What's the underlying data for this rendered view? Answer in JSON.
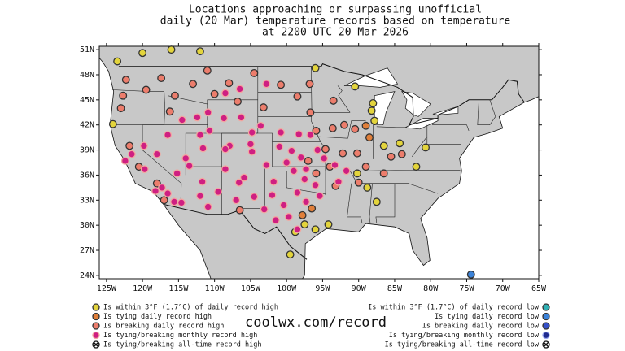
{
  "title": [
    "Locations approaching or surpassing unofficial",
    "daily (20 Mar) temperature records based on temperature",
    "at 2200 UTC 20 Mar 2026"
  ],
  "xlim": [
    -126,
    -65
  ],
  "ylim": [
    23.6,
    51.4
  ],
  "xticks": [
    {
      "value": -125,
      "label": "125W"
    },
    {
      "value": -120,
      "label": "120W"
    },
    {
      "value": -115,
      "label": "115W"
    },
    {
      "value": -110,
      "label": "110W"
    },
    {
      "value": -105,
      "label": "105W"
    },
    {
      "value": -100,
      "label": "100W"
    },
    {
      "value": -95,
      "label": "95W"
    },
    {
      "value": -90,
      "label": "90W"
    },
    {
      "value": -85,
      "label": "85W"
    },
    {
      "value": -80,
      "label": "80W"
    },
    {
      "value": -75,
      "label": "75W"
    },
    {
      "value": -70,
      "label": "70W"
    },
    {
      "value": -65,
      "label": "65W"
    }
  ],
  "yticks": [
    {
      "value": 24,
      "label": "24N"
    },
    {
      "value": 27,
      "label": "27N"
    },
    {
      "value": 30,
      "label": "30N"
    },
    {
      "value": 33,
      "label": "33N"
    },
    {
      "value": 36,
      "label": "36N"
    },
    {
      "value": 39,
      "label": "39N"
    },
    {
      "value": 42,
      "label": "42N"
    },
    {
      "value": 45,
      "label": "45N"
    },
    {
      "value": 48,
      "label": "48N"
    },
    {
      "value": 51,
      "label": "51N"
    }
  ],
  "site": "coolwx.com/record",
  "legend": [
    {
      "label": "Is within 3°F (1.7°C) of daily record high",
      "color": "#e3d43c",
      "stroke": "#333"
    },
    {
      "label": "Is tying daily record high",
      "color": "#e07f3a",
      "stroke": "#333"
    },
    {
      "label": "Is breaking daily record high",
      "color": "#ec7d6c",
      "stroke": "#333"
    },
    {
      "label": "Is tying/breaking monthly record high",
      "color": "#cf1f82",
      "stroke": "#f2a7a0"
    },
    {
      "label": "Is tying/breaking all-time record high",
      "color": "#ffffff",
      "stroke": "#111"
    },
    {
      "label": "Is within 3°F (1.7°C) of daily record low",
      "color": "#2fb0b4",
      "stroke": "#333"
    },
    {
      "label": "Is tying daily record low",
      "color": "#3b82d8",
      "stroke": "#333"
    },
    {
      "label": "Is breaking daily record low",
      "color": "#3550c8",
      "stroke": "#333"
    },
    {
      "label": "Is tying/breaking monthly record low",
      "color": "#1f2a8f",
      "stroke": "#9aa8f0"
    },
    {
      "label": "Is tying/breaking all-time record low",
      "color": "#ffffff",
      "stroke": "#111"
    }
  ],
  "points": [
    [
      -123.5,
      49.6,
      0
    ],
    [
      -120,
      50.6,
      0
    ],
    [
      -116,
      51,
      0
    ],
    [
      -112,
      50.8,
      0
    ],
    [
      -124.1,
      42.1,
      0
    ],
    [
      -96,
      48.8,
      0
    ],
    [
      -90.5,
      46.6,
      0
    ],
    [
      -88,
      44.6,
      0
    ],
    [
      -88.2,
      43.7,
      0
    ],
    [
      -87.8,
      42.5,
      0
    ],
    [
      -86.5,
      39.5,
      0
    ],
    [
      -84.3,
      39.8,
      0
    ],
    [
      -80.7,
      39.3,
      0
    ],
    [
      -82,
      37,
      0
    ],
    [
      -88.8,
      34.5,
      0
    ],
    [
      -97.5,
      30.1,
      0
    ],
    [
      -96,
      29.5,
      0
    ],
    [
      -94.2,
      30.1,
      0
    ],
    [
      -99.5,
      26.5,
      0
    ],
    [
      -98.8,
      29.2,
      0
    ],
    [
      -87.5,
      32.8,
      0
    ],
    [
      -90.2,
      36.2,
      0
    ],
    [
      -96.5,
      32,
      1
    ],
    [
      -97.8,
      31.2,
      1
    ],
    [
      -88.5,
      40.5,
      1
    ],
    [
      -89,
      41.9,
      1
    ],
    [
      -111,
      48.5,
      2
    ],
    [
      -108,
      47,
      2
    ],
    [
      -104.5,
      48.2,
      2
    ],
    [
      -100.8,
      46.8,
      2
    ],
    [
      -96.8,
      46.9,
      2
    ],
    [
      -93.5,
      44.9,
      2
    ],
    [
      -92,
      42,
      2
    ],
    [
      -93.6,
      41.6,
      2
    ],
    [
      -90.5,
      41.5,
      2
    ],
    [
      -94.6,
      39.1,
      2
    ],
    [
      -92.2,
      38.6,
      2
    ],
    [
      -90.2,
      38.6,
      2
    ],
    [
      -86.5,
      36.2,
      2
    ],
    [
      -85.5,
      38.2,
      2
    ],
    [
      -89,
      37,
      2
    ],
    [
      -90,
      35.1,
      2
    ],
    [
      -116.2,
      43.6,
      2
    ],
    [
      -117.4,
      47.6,
      2
    ],
    [
      -119.5,
      46.2,
      2
    ],
    [
      -122.3,
      47.4,
      2
    ],
    [
      -122.7,
      45.5,
      2
    ],
    [
      -123,
      44,
      2
    ],
    [
      -115.5,
      45.5,
      2
    ],
    [
      -113,
      46.9,
      2
    ],
    [
      -110,
      45.7,
      2
    ],
    [
      -106.8,
      44.8,
      2
    ],
    [
      -98.5,
      45.4,
      2
    ],
    [
      -103.2,
      44.1,
      2
    ],
    [
      -96.7,
      43.5,
      2
    ],
    [
      -95.9,
      41.3,
      2
    ],
    [
      -121.8,
      39.5,
      2
    ],
    [
      -120.5,
      37,
      2
    ],
    [
      -118,
      35,
      2
    ],
    [
      -117,
      33,
      2
    ],
    [
      -106.5,
      31.8,
      2
    ],
    [
      -97,
      37.7,
      2
    ],
    [
      -94,
      37,
      2
    ],
    [
      -95.9,
      36.2,
      2
    ],
    [
      -93.2,
      34.7,
      2
    ],
    [
      -84,
      38.5,
      2
    ],
    [
      -119.8,
      39.5,
      3
    ],
    [
      -118,
      38.5,
      3
    ],
    [
      -116.5,
      40.8,
      3
    ],
    [
      -115.2,
      36.2,
      3
    ],
    [
      -114,
      38,
      3
    ],
    [
      -112,
      40.8,
      3
    ],
    [
      -111.6,
      39.2,
      3
    ],
    [
      -113.5,
      37.1,
      3
    ],
    [
      -112,
      33.5,
      3
    ],
    [
      -110.9,
      32.2,
      3
    ],
    [
      -111.7,
      35.2,
      3
    ],
    [
      -109.5,
      34,
      3
    ],
    [
      -114.6,
      32.7,
      3
    ],
    [
      -116.5,
      33.8,
      3
    ],
    [
      -118.2,
      34.1,
      3
    ],
    [
      -119.7,
      36.7,
      3
    ],
    [
      -121.5,
      38.5,
      3
    ],
    [
      -122.4,
      37.7,
      3
    ],
    [
      -117.3,
      34.5,
      3
    ],
    [
      -115.6,
      32.8,
      3
    ],
    [
      -106.6,
      35.1,
      3
    ],
    [
      -105.9,
      35.7,
      3
    ],
    [
      -104.5,
      33.4,
      3
    ],
    [
      -107,
      33,
      3
    ],
    [
      -108.5,
      36.7,
      3
    ],
    [
      -105,
      39.7,
      3
    ],
    [
      -104.8,
      38.8,
      3
    ],
    [
      -107.9,
      39.5,
      3
    ],
    [
      -108.5,
      39.1,
      3
    ],
    [
      -102.8,
      37.2,
      3
    ],
    [
      -101,
      39.4,
      3
    ],
    [
      -99.3,
      38.9,
      3
    ],
    [
      -98,
      38.1,
      3
    ],
    [
      -100,
      37.5,
      3
    ],
    [
      -101.8,
      35.2,
      3
    ],
    [
      -102,
      33.6,
      3
    ],
    [
      -100.4,
      32.4,
      3
    ],
    [
      -98.5,
      33.9,
      3
    ],
    [
      -97.5,
      35.5,
      3
    ],
    [
      -99,
      36.5,
      3
    ],
    [
      -97.3,
      32.8,
      3
    ],
    [
      -99.7,
      31,
      3
    ],
    [
      -98.5,
      29.5,
      3
    ],
    [
      -101.5,
      30.6,
      3
    ],
    [
      -103.1,
      31.9,
      3
    ],
    [
      -96.7,
      40.8,
      3
    ],
    [
      -98.3,
      40.9,
      3
    ],
    [
      -100.8,
      41.1,
      3
    ],
    [
      -103.6,
      41.9,
      3
    ],
    [
      -104.8,
      41.1,
      3
    ],
    [
      -106.3,
      42.9,
      3
    ],
    [
      -108.7,
      42.8,
      3
    ],
    [
      -110.7,
      41.3,
      3
    ],
    [
      -112.4,
      42.9,
      3
    ],
    [
      -114.5,
      42.6,
      3
    ],
    [
      -108.5,
      45.8,
      3
    ],
    [
      -110.9,
      43.5,
      3
    ],
    [
      -106.5,
      46.3,
      3
    ],
    [
      -102.8,
      46.9,
      3
    ],
    [
      -94.8,
      38,
      3
    ],
    [
      -95.7,
      39,
      3
    ],
    [
      -93.3,
      37.2,
      3
    ],
    [
      -97.3,
      36.7,
      3
    ],
    [
      -96,
      34.8,
      3
    ],
    [
      -95.4,
      33.5,
      3
    ],
    [
      -92.8,
      35.2,
      3
    ],
    [
      -91.7,
      36.5,
      3
    ],
    [
      -74.4,
      24.1,
      6
    ]
  ]
}
